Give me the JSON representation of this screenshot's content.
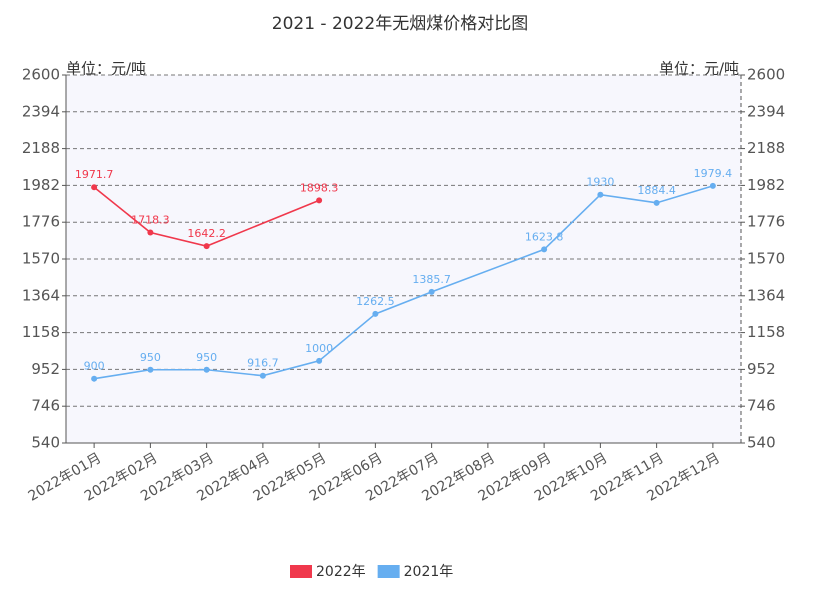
{
  "chart_data": {
    "type": "line",
    "title": "2021 - 2022年无烟煤价格对比图",
    "y_label": "单位：元/吨",
    "y2_label": "单位：元/吨",
    "categories": [
      "2022年01月",
      "2022年02月",
      "2022年03月",
      "2022年04月",
      "2022年05月",
      "2022年06月",
      "2022年07月",
      "2022年08月",
      "2022年09月",
      "2022年10月",
      "2022年11月",
      "2022年12月"
    ],
    "series": [
      {
        "name": "2022年",
        "color": "#f0384c",
        "values": [
          1971.7,
          1718.3,
          1642.2,
          null,
          1898.3,
          null,
          null,
          null,
          null,
          null,
          null,
          null
        ]
      },
      {
        "name": "2021年",
        "color": "#66aef0",
        "values": [
          900,
          950,
          950,
          916.7,
          1000,
          1262.5,
          1385.7,
          null,
          1623.8,
          1930,
          1884.4,
          1979.4
        ]
      }
    ],
    "ylim": [
      540,
      2600
    ],
    "yticks": [
      540,
      746,
      952,
      1158,
      1364,
      1570,
      1776,
      1982,
      2188,
      2394,
      2600
    ],
    "y2lim": [
      540,
      2600
    ],
    "y2ticks": [
      540,
      746,
      952,
      1158,
      1364,
      1570,
      1776,
      1982,
      2188,
      2394,
      2600
    ],
    "grid": true,
    "connect_gaps": true,
    "legend": "bottom"
  }
}
